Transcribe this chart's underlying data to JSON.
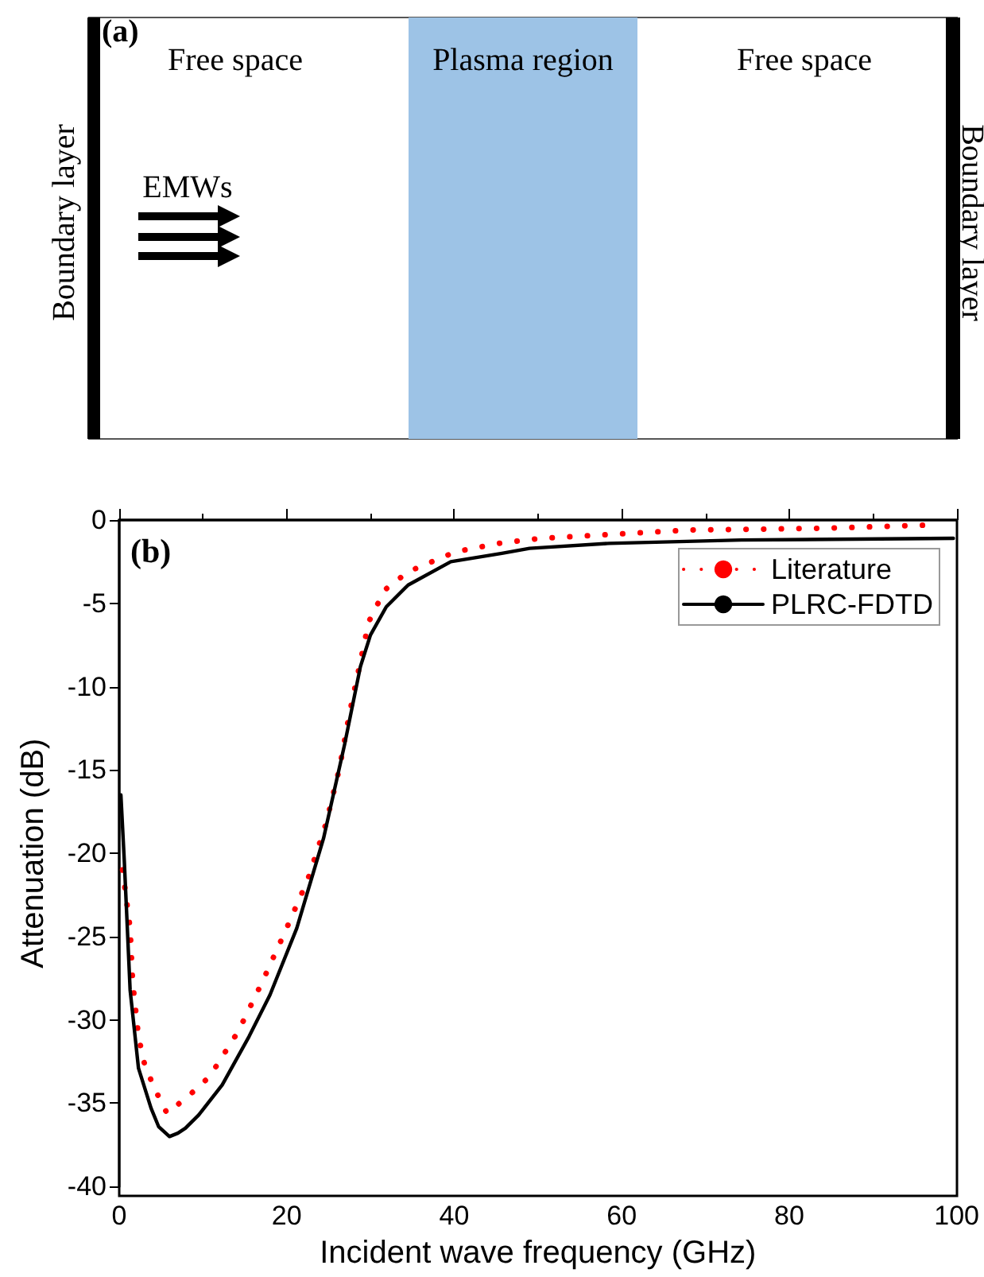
{
  "chart_data": [
    {
      "type": "other",
      "annotations": [
        "(a)",
        "Free space",
        "Plasma region",
        "Free space",
        "Boundary layer",
        "EMWs",
        "Boundary layer"
      ]
    },
    {
      "type": "line",
      "xlabel": "Incident wave frequency (GHz)",
      "ylabel": "Attenuation (dB)",
      "annotations": [
        "(b)"
      ],
      "xlim": [
        0,
        100
      ],
      "xticks": [
        0,
        20,
        40,
        60,
        80,
        100
      ],
      "ylim": [
        -40,
        0
      ],
      "yticks": [
        -40,
        -35,
        -30,
        -25,
        -20,
        -15,
        -10,
        -5,
        0
      ],
      "grid": false,
      "legend": "top right",
      "marker": "none",
      "series": [
        {
          "name": "Literature",
          "color": "#ff0000",
          "line_style": "dotted",
          "x": [
            0.4,
            1.3,
            1.6,
            2.3,
            3,
            4.1,
            5.7,
            8.2,
            10.8,
            14.2,
            17.1,
            19.9,
            22.5,
            24.7,
            26.3,
            27.5,
            28.8,
            29.8,
            31.7,
            34.5,
            40.2,
            45.3,
            50.3,
            68,
            83.8,
            96.8
          ],
          "values": [
            -21,
            -24.5,
            -27.7,
            -31,
            -32.6,
            -34,
            -35.6,
            -34.6,
            -33.4,
            -30.7,
            -27.7,
            -24.6,
            -21.6,
            -18.2,
            -14.9,
            -11.6,
            -8.5,
            -6.1,
            -4.2,
            -3.1,
            -1.9,
            -1.4,
            -1.1,
            -0.6,
            -0.5,
            -0.3
          ]
        },
        {
          "name": "PLRC-FDTD",
          "color": "#000000",
          "line_style": "solid",
          "x": [
            0.2,
            0.6,
            1.3,
            2.3,
            3.8,
            4.7,
            6,
            7,
            7.9,
            9.5,
            12.3,
            15.5,
            18,
            21.2,
            24.4,
            26.9,
            28.8,
            30,
            31.9,
            34.5,
            39.6,
            45.7,
            49,
            58.5,
            74.3,
            99.6
          ],
          "values": [
            -16.5,
            -20.4,
            -28.2,
            -32.9,
            -35.3,
            -36.4,
            -37,
            -36.8,
            -36.5,
            -35.7,
            -33.9,
            -31,
            -28.5,
            -24.5,
            -19.1,
            -13.5,
            -8.8,
            -6.9,
            -5.2,
            -3.9,
            -2.5,
            -2,
            -1.7,
            -1.4,
            -1.2,
            -1.1
          ]
        }
      ]
    }
  ]
}
